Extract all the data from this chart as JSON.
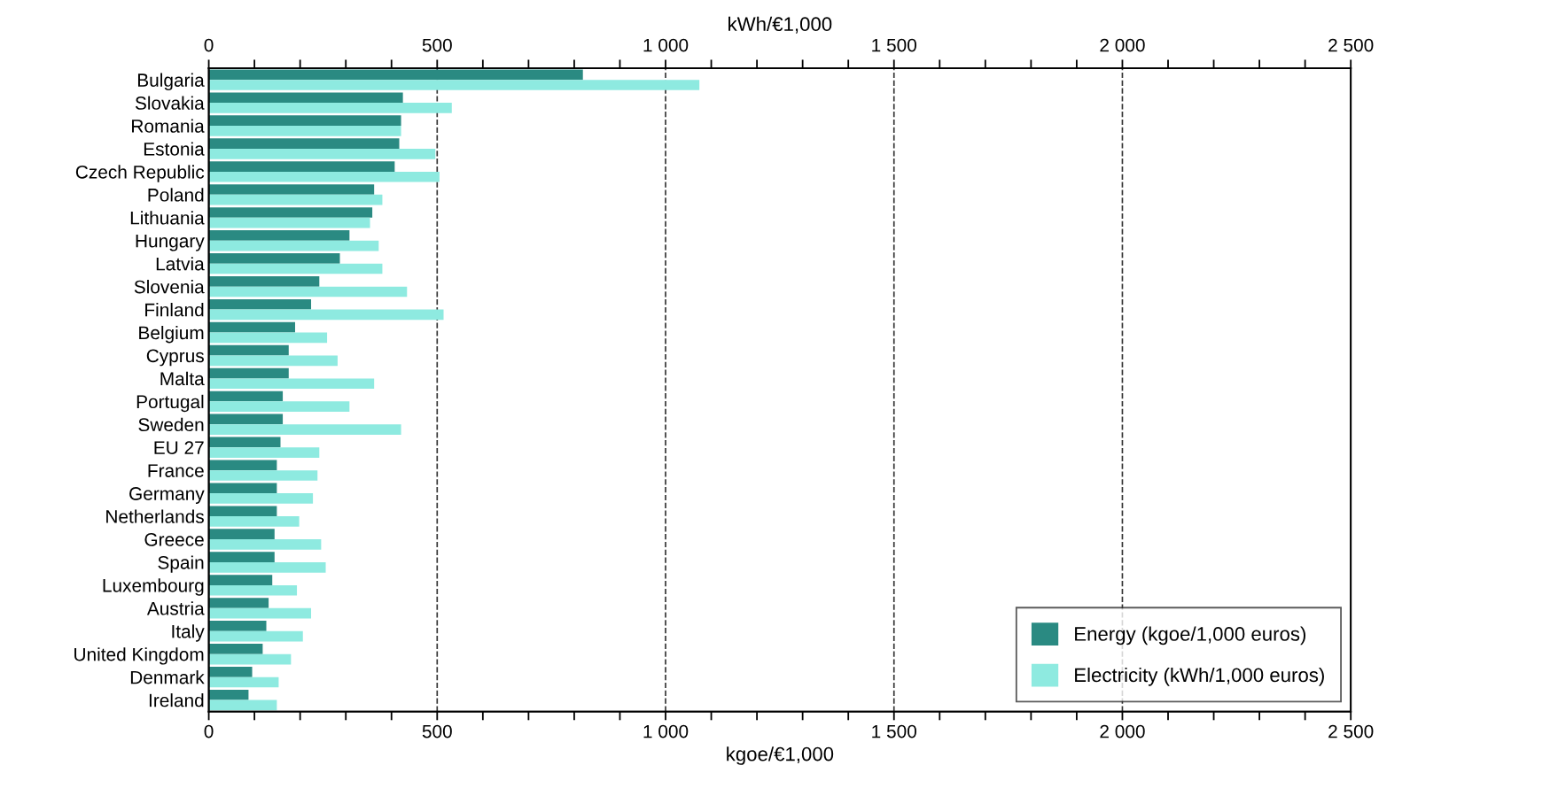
{
  "chart_data": {
    "type": "bar",
    "orientation": "horizontal",
    "xlabel": "kgoe/€1,000",
    "x2label": "kWh/€1,000",
    "categories": [
      "Bulgaria",
      "Slovakia",
      "Romania",
      "Estonia",
      "Czech Republic",
      "Poland",
      "Lithuania",
      "Hungary",
      "Latvia",
      "Slovenia",
      "Finland",
      "Belgium",
      "Cyprus",
      "Malta",
      "Portugal",
      "Sweden",
      "EU 27",
      "France",
      "Germany",
      "Netherlands",
      "Greece",
      "Spain",
      "Luxembourg",
      "Austria",
      "Italy",
      "United Kingdom",
      "Denmark",
      "Ireland"
    ],
    "series": [
      {
        "name": "Energy (kgoe/1,000 euros)",
        "color": "#2a8a82",
        "values": [
          819,
          425,
          421,
          417,
          407,
          362,
          358,
          308,
          287,
          242,
          224,
          189,
          175,
          175,
          162,
          162,
          157,
          149,
          149,
          149,
          144,
          144,
          139,
          131,
          126,
          118,
          95,
          87
        ]
      },
      {
        "name": "Electricity (kWh/1,000 euros)",
        "color": "#8eeae0",
        "values": [
          1074,
          532,
          421,
          496,
          505,
          380,
          353,
          372,
          380,
          434,
          514,
          259,
          282,
          362,
          308,
          421,
          242,
          238,
          228,
          198,
          246,
          256,
          193,
          224,
          206,
          180,
          153,
          149
        ]
      }
    ],
    "xlim": [
      0,
      2500
    ],
    "xticks": [
      0,
      {
        "value": 100,
        "label": null
      },
      {
        "value": 200,
        "label": null
      },
      {
        "value": 300,
        "label": null
      },
      {
        "value": 400,
        "label": null
      },
      500,
      {
        "value": 600,
        "label": null
      },
      {
        "value": 700,
        "label": null
      },
      {
        "value": 800,
        "label": null
      },
      {
        "value": 900,
        "label": null
      },
      {
        "value": 1000,
        "label": "1 000"
      },
      {
        "value": 1100,
        "label": null
      },
      {
        "value": 1200,
        "label": null
      },
      {
        "value": 1300,
        "label": null
      },
      {
        "value": 1400,
        "label": null
      },
      {
        "value": 1500,
        "label": "1 500"
      },
      {
        "value": 1600,
        "label": null
      },
      {
        "value": 1700,
        "label": null
      },
      {
        "value": 1800,
        "label": null
      },
      {
        "value": 1900,
        "label": null
      },
      {
        "value": 2000,
        "label": "2 000"
      },
      {
        "value": 2100,
        "label": null
      },
      {
        "value": 2200,
        "label": null
      },
      {
        "value": 2300,
        "label": null
      },
      {
        "value": 2400,
        "label": null
      },
      {
        "value": 2500,
        "label": "2 500"
      }
    ],
    "x2lim": [
      0,
      2500
    ],
    "x2ticks": [
      0,
      {
        "value": 100,
        "label": null
      },
      {
        "value": 200,
        "label": null
      },
      {
        "value": 300,
        "label": null
      },
      {
        "value": 400,
        "label": null
      },
      500,
      {
        "value": 600,
        "label": null
      },
      {
        "value": 700,
        "label": null
      },
      {
        "value": 800,
        "label": null
      },
      {
        "value": 900,
        "label": null
      },
      {
        "value": 1000,
        "label": "1 000"
      },
      {
        "value": 1100,
        "label": null
      },
      {
        "value": 1200,
        "label": null
      },
      {
        "value": 1300,
        "label": null
      },
      {
        "value": 1400,
        "label": null
      },
      {
        "value": 1500,
        "label": "1 500"
      },
      {
        "value": 1600,
        "label": null
      },
      {
        "value": 1700,
        "label": null
      },
      {
        "value": 1800,
        "label": null
      },
      {
        "value": 1900,
        "label": null
      },
      {
        "value": 2000,
        "label": "2 000"
      },
      {
        "value": 2100,
        "label": null
      },
      {
        "value": 2200,
        "label": null
      },
      {
        "value": 2300,
        "label": null
      },
      {
        "value": 2400,
        "label": null
      },
      {
        "value": 2500,
        "label": "2 500"
      }
    ],
    "ref_lines": [
      {
        "axis": "x",
        "value": 500,
        "line_style": "dashed",
        "color": "#333333"
      },
      {
        "axis": "x",
        "value": 1000,
        "line_style": "dashed",
        "color": "#333333"
      },
      {
        "axis": "x",
        "value": 1500,
        "line_style": "dashed",
        "color": "#333333"
      },
      {
        "axis": "x",
        "value": 2000,
        "line_style": "dashed",
        "color": "#333333"
      }
    ],
    "legend": "bottom right"
  }
}
